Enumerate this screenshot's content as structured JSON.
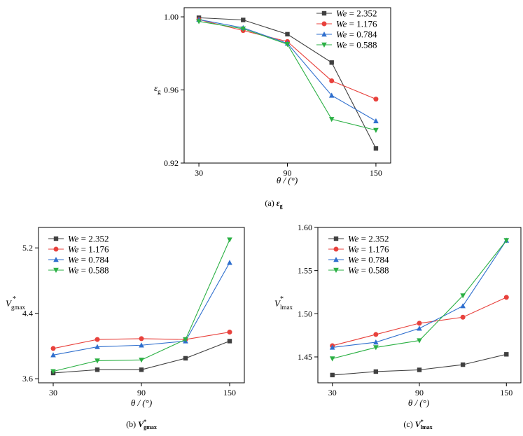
{
  "charts": [
    {
      "id": "a",
      "caption_label": "(a)",
      "caption_symbol": "ε",
      "caption_sub": "g",
      "ylabel_main": "ε",
      "ylabel_sub": "g",
      "ylabel_sup": "",
      "xlabel": "θ / (°)"
    },
    {
      "id": "b",
      "caption_label": "(b)",
      "caption_symbol": "V",
      "caption_sub": "gmax",
      "ylabel_main": "V",
      "ylabel_sub": "gmax",
      "ylabel_sup": "*",
      "xlabel": "θ / (°)"
    },
    {
      "id": "c",
      "caption_label": "(c)",
      "caption_symbol": "V",
      "caption_sub": "lmax",
      "ylabel_main": "V",
      "ylabel_sub": "lmax",
      "ylabel_sup": "*",
      "xlabel": "θ / (°)"
    }
  ],
  "chart_data": [
    {
      "type": "line",
      "x": [
        30,
        60,
        90,
        120,
        150
      ],
      "xticks": [
        30,
        90,
        150
      ],
      "xlim": [
        20,
        160
      ],
      "ylim": [
        0.92,
        1.005
      ],
      "yticks": [
        "0.92",
        "0.96",
        "1.00"
      ],
      "ytick_values": [
        0.92,
        0.96,
        1.0
      ],
      "legend_position": "top-right",
      "series": [
        {
          "name": "2.352",
          "marker": "square",
          "color": "#404040",
          "values": [
            0.9995,
            0.9983,
            0.9905,
            0.975,
            0.928
          ]
        },
        {
          "name": "1.176",
          "marker": "circle",
          "color": "#e8413c",
          "values": [
            0.9985,
            0.9925,
            0.9865,
            0.965,
            0.955
          ]
        },
        {
          "name": "0.784",
          "marker": "triangle-up",
          "color": "#2f6fce",
          "values": [
            0.9985,
            0.994,
            0.9855,
            0.957,
            0.943
          ]
        },
        {
          "name": "0.588",
          "marker": "triangle-down",
          "color": "#2bb044",
          "values": [
            0.9975,
            0.9935,
            0.985,
            0.944,
            0.938
          ]
        }
      ]
    },
    {
      "type": "line",
      "x": [
        30,
        60,
        90,
        120,
        150
      ],
      "xticks": [
        30,
        90,
        150
      ],
      "xlim": [
        20,
        160
      ],
      "ylim": [
        3.55,
        5.45
      ],
      "yticks": [
        "3.6",
        "4.4",
        "5.2"
      ],
      "ytick_values": [
        3.6,
        4.4,
        5.2
      ],
      "legend_position": "top-left",
      "series": [
        {
          "name": "2.352",
          "marker": "square",
          "color": "#404040",
          "values": [
            3.67,
            3.71,
            3.71,
            3.85,
            4.06
          ]
        },
        {
          "name": "1.176",
          "marker": "circle",
          "color": "#e8413c",
          "values": [
            3.97,
            4.08,
            4.09,
            4.08,
            4.17
          ]
        },
        {
          "name": "0.784",
          "marker": "triangle-up",
          "color": "#2f6fce",
          "values": [
            3.89,
            3.99,
            4.01,
            4.06,
            5.02
          ]
        },
        {
          "name": "0.588",
          "marker": "triangle-down",
          "color": "#2bb044",
          "values": [
            3.69,
            3.82,
            3.83,
            4.08,
            5.3
          ]
        }
      ]
    },
    {
      "type": "line",
      "x": [
        30,
        60,
        90,
        120,
        150
      ],
      "xticks": [
        30,
        90,
        150
      ],
      "xlim": [
        20,
        160
      ],
      "ylim": [
        1.42,
        1.6
      ],
      "yticks": [
        "1.45",
        "1.50",
        "1.55",
        "1.60"
      ],
      "ytick_values": [
        1.45,
        1.5,
        1.55,
        1.6
      ],
      "legend_position": "top-left",
      "series": [
        {
          "name": "2.352",
          "marker": "square",
          "color": "#404040",
          "values": [
            1.429,
            1.433,
            1.435,
            1.441,
            1.453
          ]
        },
        {
          "name": "1.176",
          "marker": "circle",
          "color": "#e8413c",
          "values": [
            1.463,
            1.476,
            1.489,
            1.496,
            1.519
          ]
        },
        {
          "name": "0.784",
          "marker": "triangle-up",
          "color": "#2f6fce",
          "values": [
            1.461,
            1.467,
            1.483,
            1.509,
            1.585
          ]
        },
        {
          "name": "0.588",
          "marker": "triangle-down",
          "color": "#2bb044",
          "values": [
            1.448,
            1.461,
            1.469,
            1.521,
            1.585
          ]
        }
      ]
    }
  ],
  "legend_prefix": "We",
  "legend_eq": " = "
}
